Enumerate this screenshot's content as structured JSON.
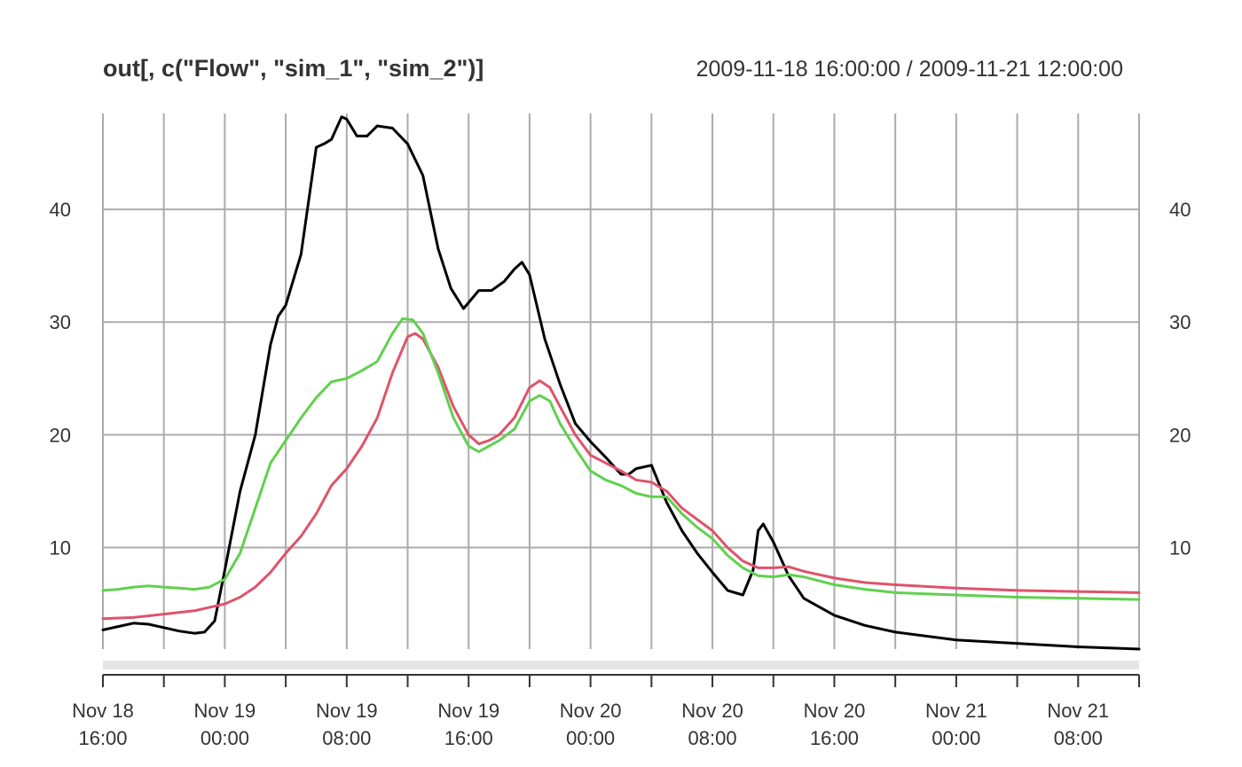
{
  "chart_data": {
    "type": "line",
    "title": "out[, c(\"Flow\", \"sim_1\", \"sim_2\")]",
    "date_range": "2009-11-18 16:00:00 / 2009-11-21 12:00:00",
    "xlabel": "",
    "ylabel": "",
    "x_range": [
      "2009-11-18 16:00",
      "2009-11-21 12:00"
    ],
    "ylim": [
      1.0,
      48.5
    ],
    "y_ticks": [
      10,
      20,
      30,
      40
    ],
    "y_tick_labels": [
      "10",
      "20",
      "30",
      "40"
    ],
    "grid": true,
    "x_ticks": [
      {
        "x": "2009-11-18 16:00",
        "line1": "Nov 18",
        "line2": "16:00",
        "labeled": true
      },
      {
        "x": "2009-11-18 20:00",
        "line1": "",
        "line2": "",
        "labeled": false
      },
      {
        "x": "2009-11-19 00:00",
        "line1": "Nov 19",
        "line2": "00:00",
        "labeled": true
      },
      {
        "x": "2009-11-19 04:00",
        "line1": "",
        "line2": "",
        "labeled": false
      },
      {
        "x": "2009-11-19 08:00",
        "line1": "Nov 19",
        "line2": "08:00",
        "labeled": true
      },
      {
        "x": "2009-11-19 12:00",
        "line1": "",
        "line2": "",
        "labeled": false
      },
      {
        "x": "2009-11-19 16:00",
        "line1": "Nov 19",
        "line2": "16:00",
        "labeled": true
      },
      {
        "x": "2009-11-19 20:00",
        "line1": "",
        "line2": "",
        "labeled": false
      },
      {
        "x": "2009-11-20 00:00",
        "line1": "Nov 20",
        "line2": "00:00",
        "labeled": true
      },
      {
        "x": "2009-11-20 04:00",
        "line1": "",
        "line2": "",
        "labeled": false
      },
      {
        "x": "2009-11-20 08:00",
        "line1": "Nov 20",
        "line2": "08:00",
        "labeled": true
      },
      {
        "x": "2009-11-20 12:00",
        "line1": "",
        "line2": "",
        "labeled": false
      },
      {
        "x": "2009-11-20 16:00",
        "line1": "Nov 20",
        "line2": "16:00",
        "labeled": true
      },
      {
        "x": "2009-11-20 20:00",
        "line1": "",
        "line2": "",
        "labeled": false
      },
      {
        "x": "2009-11-21 00:00",
        "line1": "Nov 21",
        "line2": "00:00",
        "labeled": true
      },
      {
        "x": "2009-11-21 04:00",
        "line1": "",
        "line2": "",
        "labeled": false
      },
      {
        "x": "2009-11-21 08:00",
        "line1": "Nov 21",
        "line2": "08:00",
        "labeled": true
      },
      {
        "x": "2009-11-21 12:00",
        "line1": "",
        "line2": "",
        "labeled": false
      }
    ],
    "series": [
      {
        "name": "Flow",
        "color": "#000000",
        "points": [
          [
            "2009-11-18 16:00",
            2.7
          ],
          [
            "2009-11-18 17:00",
            3.0
          ],
          [
            "2009-11-18 18:00",
            3.3
          ],
          [
            "2009-11-18 19:00",
            3.2
          ],
          [
            "2009-11-18 20:00",
            2.9
          ],
          [
            "2009-11-18 21:00",
            2.6
          ],
          [
            "2009-11-18 22:00",
            2.4
          ],
          [
            "2009-11-18 22:40",
            2.5
          ],
          [
            "2009-11-18 23:20",
            3.5
          ],
          [
            "2009-11-19 00:00",
            8.0
          ],
          [
            "2009-11-19 01:00",
            15.0
          ],
          [
            "2009-11-19 02:00",
            20.0
          ],
          [
            "2009-11-19 03:00",
            28.0
          ],
          [
            "2009-11-19 03:30",
            30.5
          ],
          [
            "2009-11-19 04:00",
            31.5
          ],
          [
            "2009-11-19 05:00",
            36.0
          ],
          [
            "2009-11-19 06:00",
            45.5
          ],
          [
            "2009-11-19 06:30",
            45.8
          ],
          [
            "2009-11-19 07:00",
            46.2
          ],
          [
            "2009-11-19 07:40",
            48.2
          ],
          [
            "2009-11-19 08:00",
            48.0
          ],
          [
            "2009-11-19 08:40",
            46.5
          ],
          [
            "2009-11-19 09:20",
            46.5
          ],
          [
            "2009-11-19 10:00",
            47.4
          ],
          [
            "2009-11-19 11:00",
            47.2
          ],
          [
            "2009-11-19 12:00",
            45.8
          ],
          [
            "2009-11-19 13:00",
            43.0
          ],
          [
            "2009-11-19 14:00",
            36.5
          ],
          [
            "2009-11-19 14:50",
            33.0
          ],
          [
            "2009-11-19 15:40",
            31.2
          ],
          [
            "2009-11-19 16:40",
            32.8
          ],
          [
            "2009-11-19 17:30",
            32.8
          ],
          [
            "2009-11-19 18:20",
            33.6
          ],
          [
            "2009-11-19 19:00",
            34.7
          ],
          [
            "2009-11-19 19:30",
            35.3
          ],
          [
            "2009-11-19 20:00",
            34.2
          ],
          [
            "2009-11-19 21:00",
            28.5
          ],
          [
            "2009-11-19 22:00",
            24.5
          ],
          [
            "2009-11-19 23:00",
            21.0
          ],
          [
            "2009-11-20 00:00",
            19.4
          ],
          [
            "2009-11-20 01:00",
            18.0
          ],
          [
            "2009-11-20 02:00",
            16.5
          ],
          [
            "2009-11-20 02:30",
            16.5
          ],
          [
            "2009-11-20 03:00",
            17.0
          ],
          [
            "2009-11-20 04:00",
            17.3
          ],
          [
            "2009-11-20 05:00",
            14.0
          ],
          [
            "2009-11-20 06:00",
            11.5
          ],
          [
            "2009-11-20 07:00",
            9.5
          ],
          [
            "2009-11-20 08:00",
            7.8
          ],
          [
            "2009-11-20 09:00",
            6.2
          ],
          [
            "2009-11-20 10:00",
            5.8
          ],
          [
            "2009-11-20 10:40",
            8.0
          ],
          [
            "2009-11-20 11:00",
            11.5
          ],
          [
            "2009-11-20 11:20",
            12.1
          ],
          [
            "2009-11-20 12:00",
            10.5
          ],
          [
            "2009-11-20 13:00",
            7.5
          ],
          [
            "2009-11-20 14:00",
            5.5
          ],
          [
            "2009-11-20 16:00",
            4.0
          ],
          [
            "2009-11-20 18:00",
            3.1
          ],
          [
            "2009-11-20 20:00",
            2.5
          ],
          [
            "2009-11-21 00:00",
            1.8
          ],
          [
            "2009-11-21 04:00",
            1.5
          ],
          [
            "2009-11-21 08:00",
            1.2
          ],
          [
            "2009-11-21 12:00",
            1.0
          ]
        ]
      },
      {
        "name": "sim_1",
        "color": "#df536b",
        "points": [
          [
            "2009-11-18 16:00",
            3.7
          ],
          [
            "2009-11-18 18:00",
            3.8
          ],
          [
            "2009-11-18 20:00",
            4.1
          ],
          [
            "2009-11-18 22:00",
            4.4
          ],
          [
            "2009-11-19 00:00",
            5.0
          ],
          [
            "2009-11-19 01:00",
            5.6
          ],
          [
            "2009-11-19 02:00",
            6.5
          ],
          [
            "2009-11-19 03:00",
            7.8
          ],
          [
            "2009-11-19 04:00",
            9.5
          ],
          [
            "2009-11-19 05:00",
            11.0
          ],
          [
            "2009-11-19 06:00",
            13.0
          ],
          [
            "2009-11-19 07:00",
            15.5
          ],
          [
            "2009-11-19 08:00",
            17.0
          ],
          [
            "2009-11-19 09:00",
            19.0
          ],
          [
            "2009-11-19 10:00",
            21.5
          ],
          [
            "2009-11-19 11:00",
            25.5
          ],
          [
            "2009-11-19 12:00",
            28.7
          ],
          [
            "2009-11-19 12:30",
            29.0
          ],
          [
            "2009-11-19 13:00",
            28.5
          ],
          [
            "2009-11-19 14:00",
            26.0
          ],
          [
            "2009-11-19 15:00",
            22.5
          ],
          [
            "2009-11-19 16:00",
            20.0
          ],
          [
            "2009-11-19 16:40",
            19.2
          ],
          [
            "2009-11-19 17:20",
            19.5
          ],
          [
            "2009-11-19 18:00",
            20.0
          ],
          [
            "2009-11-19 19:00",
            21.5
          ],
          [
            "2009-11-19 20:00",
            24.2
          ],
          [
            "2009-11-19 20:40",
            24.8
          ],
          [
            "2009-11-19 21:20",
            24.2
          ],
          [
            "2009-11-19 22:00",
            22.5
          ],
          [
            "2009-11-19 23:00",
            20.0
          ],
          [
            "2009-11-20 00:00",
            18.2
          ],
          [
            "2009-11-20 01:00",
            17.5
          ],
          [
            "2009-11-20 02:00",
            16.8
          ],
          [
            "2009-11-20 03:00",
            16.0
          ],
          [
            "2009-11-20 04:00",
            15.8
          ],
          [
            "2009-11-20 05:00",
            15.0
          ],
          [
            "2009-11-20 06:00",
            13.5
          ],
          [
            "2009-11-20 07:00",
            12.5
          ],
          [
            "2009-11-20 08:00",
            11.5
          ],
          [
            "2009-11-20 09:00",
            10.0
          ],
          [
            "2009-11-20 10:00",
            8.8
          ],
          [
            "2009-11-20 11:00",
            8.2
          ],
          [
            "2009-11-20 12:00",
            8.2
          ],
          [
            "2009-11-20 13:00",
            8.3
          ],
          [
            "2009-11-20 14:00",
            7.9
          ],
          [
            "2009-11-20 16:00",
            7.3
          ],
          [
            "2009-11-20 18:00",
            6.9
          ],
          [
            "2009-11-20 20:00",
            6.7
          ],
          [
            "2009-11-21 00:00",
            6.4
          ],
          [
            "2009-11-21 04:00",
            6.2
          ],
          [
            "2009-11-21 08:00",
            6.1
          ],
          [
            "2009-11-21 12:00",
            6.0
          ]
        ]
      },
      {
        "name": "sim_2",
        "color": "#61d04f",
        "points": [
          [
            "2009-11-18 16:00",
            6.2
          ],
          [
            "2009-11-18 17:00",
            6.3
          ],
          [
            "2009-11-18 18:00",
            6.5
          ],
          [
            "2009-11-18 19:00",
            6.6
          ],
          [
            "2009-11-18 20:00",
            6.5
          ],
          [
            "2009-11-18 21:00",
            6.4
          ],
          [
            "2009-11-18 22:00",
            6.3
          ],
          [
            "2009-11-18 23:00",
            6.5
          ],
          [
            "2009-11-19 00:00",
            7.2
          ],
          [
            "2009-11-19 01:00",
            9.5
          ],
          [
            "2009-11-19 02:00",
            13.5
          ],
          [
            "2009-11-19 03:00",
            17.5
          ],
          [
            "2009-11-19 04:00",
            19.5
          ],
          [
            "2009-11-19 05:00",
            21.5
          ],
          [
            "2009-11-19 06:00",
            23.3
          ],
          [
            "2009-11-19 07:00",
            24.7
          ],
          [
            "2009-11-19 08:00",
            25.0
          ],
          [
            "2009-11-19 09:00",
            25.7
          ],
          [
            "2009-11-19 10:00",
            26.5
          ],
          [
            "2009-11-19 11:00",
            29.0
          ],
          [
            "2009-11-19 11:40",
            30.3
          ],
          [
            "2009-11-19 12:20",
            30.2
          ],
          [
            "2009-11-19 13:00",
            29.0
          ],
          [
            "2009-11-19 14:00",
            25.5
          ],
          [
            "2009-11-19 15:00",
            21.5
          ],
          [
            "2009-11-19 16:00",
            19.0
          ],
          [
            "2009-11-19 16:40",
            18.5
          ],
          [
            "2009-11-19 17:20",
            19.0
          ],
          [
            "2009-11-19 18:00",
            19.5
          ],
          [
            "2009-11-19 19:00",
            20.5
          ],
          [
            "2009-11-19 20:00",
            23.0
          ],
          [
            "2009-11-19 20:40",
            23.5
          ],
          [
            "2009-11-19 21:20",
            23.0
          ],
          [
            "2009-11-19 22:00",
            21.0
          ],
          [
            "2009-11-19 23:00",
            18.8
          ],
          [
            "2009-11-20 00:00",
            16.8
          ],
          [
            "2009-11-20 01:00",
            16.0
          ],
          [
            "2009-11-20 02:00",
            15.5
          ],
          [
            "2009-11-20 03:00",
            14.8
          ],
          [
            "2009-11-20 04:00",
            14.5
          ],
          [
            "2009-11-20 05:00",
            14.5
          ],
          [
            "2009-11-20 06:00",
            13.0
          ],
          [
            "2009-11-20 07:00",
            11.8
          ],
          [
            "2009-11-20 08:00",
            10.8
          ],
          [
            "2009-11-20 09:00",
            9.3
          ],
          [
            "2009-11-20 10:00",
            8.2
          ],
          [
            "2009-11-20 11:00",
            7.5
          ],
          [
            "2009-11-20 12:00",
            7.4
          ],
          [
            "2009-11-20 13:00",
            7.6
          ],
          [
            "2009-11-20 14:00",
            7.4
          ],
          [
            "2009-11-20 16:00",
            6.7
          ],
          [
            "2009-11-20 18:00",
            6.3
          ],
          [
            "2009-11-20 20:00",
            6.0
          ],
          [
            "2009-11-21 00:00",
            5.8
          ],
          [
            "2009-11-21 04:00",
            5.6
          ],
          [
            "2009-11-21 08:00",
            5.5
          ],
          [
            "2009-11-21 12:00",
            5.4
          ]
        ]
      }
    ]
  }
}
